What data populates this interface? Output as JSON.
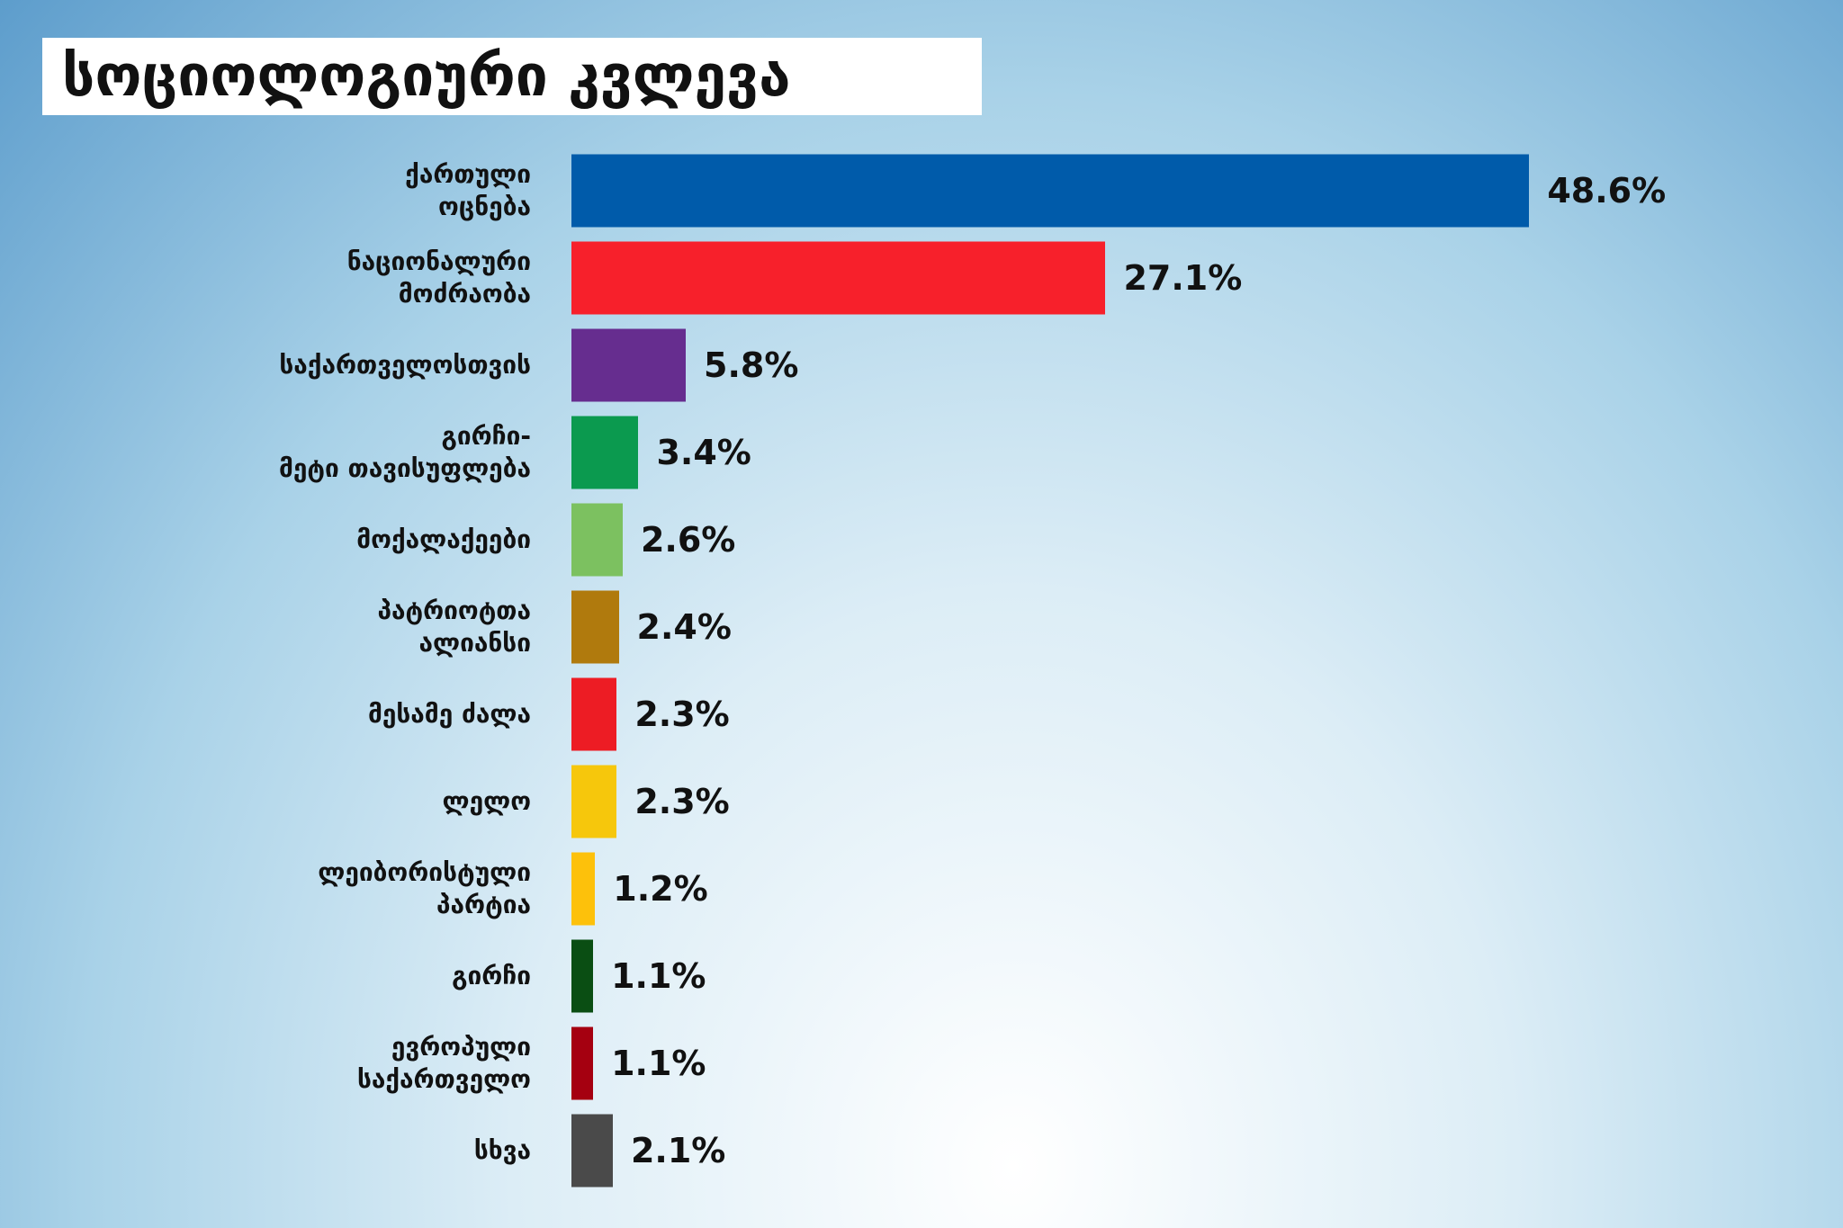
{
  "chart_data": {
    "type": "bar",
    "orientation": "horizontal",
    "title": "სოციოლოგიური კვლევა",
    "categories": [
      "ქართული\nოცნება",
      "ნაციონალური\nმოძრაობა",
      "საქართველოსთვის",
      "გირჩი-\nმეტი თავისუფლება",
      "მოქალაქეები",
      "პატრიოტთა\nალიანსი",
      "მესამე ძალა",
      "ლელო",
      "ლეიბორისტული\nპარტია",
      "გირჩი",
      "ევროპული\nსაქართველო",
      "სხვა"
    ],
    "values": [
      48.6,
      27.1,
      5.8,
      3.4,
      2.6,
      2.4,
      2.3,
      2.3,
      1.2,
      1.1,
      1.1,
      2.1
    ],
    "value_labels": [
      "48.6%",
      "27.1%",
      "5.8%",
      "3.4%",
      "2.6%",
      "2.4%",
      "2.3%",
      "2.3%",
      "1.2%",
      "1.1%",
      "1.1%",
      "2.1%"
    ],
    "colors": [
      "#005baa",
      "#f7202b",
      "#662d8f",
      "#0b9a4f",
      "#7cc160",
      "#b07a0d",
      "#ed1c24",
      "#f6c70c",
      "#fdc10b",
      "#0a4e13",
      "#a50010",
      "#4a4a4a"
    ]
  }
}
